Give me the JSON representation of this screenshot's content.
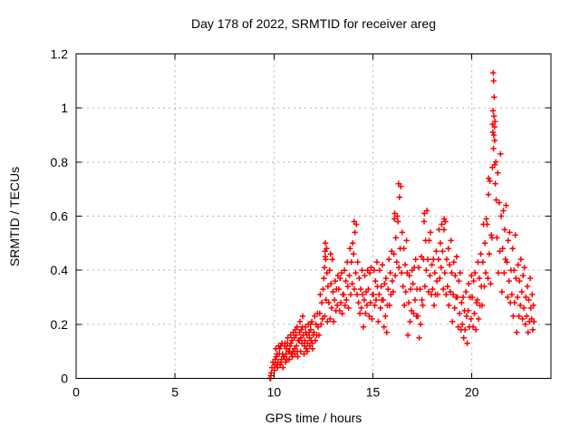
{
  "window": {
    "background": "#ffffff"
  },
  "chart_data": {
    "type": "scatter",
    "title": "Day 178 of 2022, SRMTID for receiver areg",
    "xlabel": "GPS time / hours",
    "ylabel": "SRMTID / TECUs",
    "xlim": [
      0,
      24
    ],
    "ylim": [
      0,
      1.2
    ],
    "xticks": [
      0,
      5,
      10,
      15,
      20
    ],
    "xtick_labels": [
      "0",
      "5",
      "10",
      "15",
      "20"
    ],
    "yticks": [
      0,
      0.2,
      0.4,
      0.6,
      0.8,
      1,
      1.2
    ],
    "ytick_labels": [
      "0",
      "0.2",
      "0.4",
      "0.6",
      "0.8",
      "1",
      "1.2"
    ],
    "grid": true,
    "legend": false,
    "marker": "plus",
    "marker_color": "#ff0000",
    "grid_color": "#b0b0b0",
    "axis_color": "#000000",
    "points": [
      [
        9.8,
        0.0
      ],
      [
        9.83,
        0.0
      ],
      [
        9.84,
        0.01
      ],
      [
        9.86,
        0.02
      ],
      [
        9.9,
        0.04
      ],
      [
        9.95,
        0.06
      ],
      [
        10.02,
        0.03
      ],
      [
        10.06,
        0.07
      ],
      [
        10.09,
        0.11
      ],
      [
        10.13,
        0.05
      ],
      [
        10.16,
        0.09
      ],
      [
        10.2,
        0.06
      ],
      [
        10.23,
        0.12
      ],
      [
        10.04,
        0.05
      ],
      [
        10.11,
        0.08
      ],
      [
        10.18,
        0.04
      ],
      [
        10.29,
        0.11
      ],
      [
        10.36,
        0.06
      ],
      [
        10.43,
        0.09
      ],
      [
        10.27,
        0.09
      ],
      [
        10.31,
        0.05
      ],
      [
        10.34,
        0.12
      ],
      [
        10.38,
        0.07
      ],
      [
        10.41,
        0.13
      ],
      [
        10.45,
        0.04
      ],
      [
        10.48,
        0.08
      ],
      [
        10.52,
        0.08
      ],
      [
        10.56,
        0.13
      ],
      [
        10.59,
        0.06
      ],
      [
        10.63,
        0.11
      ],
      [
        10.66,
        0.07
      ],
      [
        10.7,
        0.15
      ],
      [
        10.73,
        0.1
      ],
      [
        10.54,
        0.12
      ],
      [
        10.61,
        0.09
      ],
      [
        10.68,
        0.13
      ],
      [
        10.79,
        0.1
      ],
      [
        10.86,
        0.13
      ],
      [
        10.93,
        0.08
      ],
      [
        10.77,
        0.07
      ],
      [
        10.81,
        0.12
      ],
      [
        10.84,
        0.16
      ],
      [
        10.88,
        0.09
      ],
      [
        10.91,
        0.14
      ],
      [
        10.95,
        0.1
      ],
      [
        10.98,
        0.17
      ],
      [
        11.02,
        0.15
      ],
      [
        11.06,
        0.09
      ],
      [
        11.09,
        0.18
      ],
      [
        11.13,
        0.12
      ],
      [
        11.16,
        0.19
      ],
      [
        11.2,
        0.08
      ],
      [
        11.23,
        0.14
      ],
      [
        11.04,
        0.11
      ],
      [
        11.11,
        0.16
      ],
      [
        11.18,
        0.1
      ],
      [
        11.29,
        0.17
      ],
      [
        11.36,
        0.15
      ],
      [
        11.43,
        0.19
      ],
      [
        11.27,
        0.14
      ],
      [
        11.31,
        0.21
      ],
      [
        11.34,
        0.1
      ],
      [
        11.38,
        0.18
      ],
      [
        11.41,
        0.13
      ],
      [
        11.45,
        0.23
      ],
      [
        11.48,
        0.16
      ],
      [
        11.52,
        0.09
      ],
      [
        11.56,
        0.14
      ],
      [
        11.59,
        0.19
      ],
      [
        11.63,
        0.11
      ],
      [
        11.66,
        0.16
      ],
      [
        11.7,
        0.13
      ],
      [
        11.73,
        0.2
      ],
      [
        11.54,
        0.12
      ],
      [
        11.61,
        0.17
      ],
      [
        11.68,
        0.1
      ],
      [
        11.79,
        0.15
      ],
      [
        11.86,
        0.18
      ],
      [
        11.93,
        0.13
      ],
      [
        11.77,
        0.17
      ],
      [
        11.81,
        0.12
      ],
      [
        11.84,
        0.2
      ],
      [
        11.88,
        0.14
      ],
      [
        11.91,
        0.21
      ],
      [
        11.95,
        0.11
      ],
      [
        11.98,
        0.16
      ],
      [
        12.02,
        0.17
      ],
      [
        12.06,
        0.23
      ],
      [
        12.09,
        0.14
      ],
      [
        12.13,
        0.2
      ],
      [
        12.16,
        0.16
      ],
      [
        12.2,
        0.24
      ],
      [
        12.23,
        0.19
      ],
      [
        12.27,
        0.16
      ],
      [
        12.31,
        0.24
      ],
      [
        12.34,
        0.31
      ],
      [
        12.38,
        0.2
      ],
      [
        12.41,
        0.28
      ],
      [
        12.45,
        0.22
      ],
      [
        12.48,
        0.33
      ],
      [
        12.52,
        0.37
      ],
      [
        12.56,
        0.23
      ],
      [
        12.59,
        0.45
      ],
      [
        12.6,
        0.5
      ],
      [
        12.63,
        0.29
      ],
      [
        12.66,
        0.48
      ],
      [
        12.7,
        0.21
      ],
      [
        12.73,
        0.34
      ],
      [
        12.55,
        0.41
      ],
      [
        12.58,
        0.47
      ],
      [
        12.62,
        0.44
      ],
      [
        12.68,
        0.39
      ],
      [
        12.77,
        0.28
      ],
      [
        12.81,
        0.4
      ],
      [
        12.84,
        0.22
      ],
      [
        12.86,
        0.46
      ],
      [
        12.88,
        0.35
      ],
      [
        12.91,
        0.26
      ],
      [
        12.95,
        0.44
      ],
      [
        12.98,
        0.32
      ],
      [
        13.02,
        0.21
      ],
      [
        13.06,
        0.29
      ],
      [
        13.09,
        0.36
      ],
      [
        13.13,
        0.25
      ],
      [
        13.16,
        0.33
      ],
      [
        13.2,
        0.27
      ],
      [
        13.23,
        0.38
      ],
      [
        13.27,
        0.33
      ],
      [
        13.31,
        0.25
      ],
      [
        13.34,
        0.37
      ],
      [
        13.38,
        0.28
      ],
      [
        13.41,
        0.39
      ],
      [
        13.45,
        0.24
      ],
      [
        13.48,
        0.31
      ],
      [
        13.52,
        0.31
      ],
      [
        13.56,
        0.4
      ],
      [
        13.59,
        0.27
      ],
      [
        13.63,
        0.36
      ],
      [
        13.66,
        0.29
      ],
      [
        13.7,
        0.43
      ],
      [
        13.73,
        0.34
      ],
      [
        13.77,
        0.26
      ],
      [
        13.81,
        0.38
      ],
      [
        13.84,
        0.48
      ],
      [
        13.88,
        0.31
      ],
      [
        13.91,
        0.43
      ],
      [
        13.95,
        0.35
      ],
      [
        13.98,
        0.5
      ],
      [
        14.02,
        0.46
      ],
      [
        14.05,
        0.58
      ],
      [
        14.06,
        0.33
      ],
      [
        14.09,
        0.54
      ],
      [
        14.13,
        0.39
      ],
      [
        14.16,
        0.57
      ],
      [
        14.2,
        0.31
      ],
      [
        14.23,
        0.43
      ],
      [
        14.27,
        0.28
      ],
      [
        14.31,
        0.37
      ],
      [
        14.34,
        0.24
      ],
      [
        14.38,
        0.33
      ],
      [
        14.41,
        0.26
      ],
      [
        14.45,
        0.4
      ],
      [
        14.48,
        0.31
      ],
      [
        14.52,
        0.19
      ],
      [
        14.56,
        0.29
      ],
      [
        14.59,
        0.38
      ],
      [
        14.63,
        0.24
      ],
      [
        14.66,
        0.32
      ],
      [
        14.7,
        0.27
      ],
      [
        14.73,
        0.4
      ],
      [
        14.77,
        0.33
      ],
      [
        14.81,
        0.23
      ],
      [
        14.84,
        0.39
      ],
      [
        14.88,
        0.28
      ],
      [
        14.91,
        0.41
      ],
      [
        14.95,
        0.22
      ],
      [
        14.98,
        0.31
      ],
      [
        15.02,
        0.31
      ],
      [
        15.06,
        0.4
      ],
      [
        15.09,
        0.27
      ],
      [
        15.13,
        0.36
      ],
      [
        15.16,
        0.29
      ],
      [
        15.2,
        0.43
      ],
      [
        15.23,
        0.34
      ],
      [
        15.27,
        0.21
      ],
      [
        15.31,
        0.31
      ],
      [
        15.34,
        0.4
      ],
      [
        15.38,
        0.26
      ],
      [
        15.41,
        0.34
      ],
      [
        15.45,
        0.29
      ],
      [
        15.48,
        0.42
      ],
      [
        15.52,
        0.29
      ],
      [
        15.56,
        0.19
      ],
      [
        15.59,
        0.35
      ],
      [
        15.63,
        0.23
      ],
      [
        15.66,
        0.37
      ],
      [
        15.7,
        0.17
      ],
      [
        15.73,
        0.27
      ],
      [
        15.77,
        0.33
      ],
      [
        15.81,
        0.44
      ],
      [
        15.84,
        0.27
      ],
      [
        15.88,
        0.39
      ],
      [
        15.91,
        0.31
      ],
      [
        15.95,
        0.47
      ],
      [
        15.98,
        0.36
      ],
      [
        16.02,
        0.32
      ],
      [
        16.06,
        0.46
      ],
      [
        16.09,
        0.59
      ],
      [
        16.1,
        0.61
      ],
      [
        16.13,
        0.38
      ],
      [
        16.16,
        0.52
      ],
      [
        16.2,
        0.43
      ],
      [
        16.23,
        0.6
      ],
      [
        16.27,
        0.58
      ],
      [
        16.3,
        0.72
      ],
      [
        16.31,
        0.41
      ],
      [
        16.34,
        0.67
      ],
      [
        16.38,
        0.48
      ],
      [
        16.41,
        0.71
      ],
      [
        16.45,
        0.39
      ],
      [
        16.48,
        0.54
      ],
      [
        16.52,
        0.34
      ],
      [
        16.56,
        0.48
      ],
      [
        16.59,
        0.27
      ],
      [
        16.63,
        0.42
      ],
      [
        16.66,
        0.32
      ],
      [
        16.7,
        0.51
      ],
      [
        16.73,
        0.39
      ],
      [
        16.77,
        0.16
      ],
      [
        16.81,
        0.28
      ],
      [
        16.84,
        0.38
      ],
      [
        16.88,
        0.21
      ],
      [
        16.91,
        0.33
      ],
      [
        16.95,
        0.25
      ],
      [
        16.98,
        0.4
      ],
      [
        17.02,
        0.35
      ],
      [
        17.06,
        0.24
      ],
      [
        17.09,
        0.41
      ],
      [
        17.13,
        0.29
      ],
      [
        17.16,
        0.44
      ],
      [
        17.2,
        0.23
      ],
      [
        17.23,
        0.33
      ],
      [
        17.27,
        0.23
      ],
      [
        17.31,
        0.41
      ],
      [
        17.34,
        0.15
      ],
      [
        17.38,
        0.33
      ],
      [
        17.41,
        0.2
      ],
      [
        17.45,
        0.45
      ],
      [
        17.48,
        0.29
      ],
      [
        17.52,
        0.27
      ],
      [
        17.56,
        0.44
      ],
      [
        17.59,
        0.58
      ],
      [
        17.6,
        0.61
      ],
      [
        17.63,
        0.34
      ],
      [
        17.66,
        0.51
      ],
      [
        17.7,
        0.4
      ],
      [
        17.73,
        0.62
      ],
      [
        17.77,
        0.44
      ],
      [
        17.81,
        0.32
      ],
      [
        17.84,
        0.51
      ],
      [
        17.88,
        0.38
      ],
      [
        17.91,
        0.54
      ],
      [
        17.95,
        0.31
      ],
      [
        17.98,
        0.42
      ],
      [
        18.02,
        0.33
      ],
      [
        18.06,
        0.44
      ],
      [
        18.09,
        0.27
      ],
      [
        18.13,
        0.39
      ],
      [
        18.16,
        0.31
      ],
      [
        18.2,
        0.47
      ],
      [
        18.23,
        0.36
      ],
      [
        18.27,
        0.31
      ],
      [
        18.31,
        0.44
      ],
      [
        18.34,
        0.55
      ],
      [
        18.38,
        0.37
      ],
      [
        18.41,
        0.5
      ],
      [
        18.45,
        0.41
      ],
      [
        18.48,
        0.57
      ],
      [
        18.52,
        0.47
      ],
      [
        18.56,
        0.33
      ],
      [
        18.59,
        0.55
      ],
      [
        18.6,
        0.59
      ],
      [
        18.63,
        0.39
      ],
      [
        18.66,
        0.58
      ],
      [
        18.7,
        0.31
      ],
      [
        18.73,
        0.44
      ],
      [
        18.77,
        0.34
      ],
      [
        18.81,
        0.48
      ],
      [
        18.84,
        0.27
      ],
      [
        18.88,
        0.42
      ],
      [
        18.91,
        0.32
      ],
      [
        18.95,
        0.51
      ],
      [
        18.98,
        0.39
      ],
      [
        19.02,
        0.21
      ],
      [
        19.06,
        0.31
      ],
      [
        19.09,
        0.43
      ],
      [
        19.13,
        0.26
      ],
      [
        19.16,
        0.38
      ],
      [
        19.2,
        0.3
      ],
      [
        19.23,
        0.45
      ],
      [
        19.27,
        0.3
      ],
      [
        19.31,
        0.19
      ],
      [
        19.34,
        0.36
      ],
      [
        19.38,
        0.24
      ],
      [
        19.41,
        0.39
      ],
      [
        19.45,
        0.18
      ],
      [
        19.48,
        0.28
      ],
      [
        19.52,
        0.2
      ],
      [
        19.56,
        0.3
      ],
      [
        19.59,
        0.15
      ],
      [
        19.63,
        0.25
      ],
      [
        19.66,
        0.18
      ],
      [
        19.7,
        0.32
      ],
      [
        19.73,
        0.23
      ],
      [
        19.77,
        0.13
      ],
      [
        19.81,
        0.25
      ],
      [
        19.84,
        0.35
      ],
      [
        19.88,
        0.19
      ],
      [
        19.91,
        0.3
      ],
      [
        19.95,
        0.22
      ],
      [
        19.98,
        0.38
      ],
      [
        20.02,
        0.3
      ],
      [
        20.06,
        0.19
      ],
      [
        20.09,
        0.36
      ],
      [
        20.13,
        0.24
      ],
      [
        20.16,
        0.39
      ],
      [
        20.2,
        0.18
      ],
      [
        20.23,
        0.28
      ],
      [
        20.27,
        0.29
      ],
      [
        20.31,
        0.43
      ],
      [
        20.34,
        0.22
      ],
      [
        20.38,
        0.37
      ],
      [
        20.41,
        0.27
      ],
      [
        20.45,
        0.46
      ],
      [
        20.48,
        0.34
      ],
      [
        20.52,
        0.27
      ],
      [
        20.56,
        0.43
      ],
      [
        20.59,
        0.57
      ],
      [
        20.63,
        0.34
      ],
      [
        20.66,
        0.5
      ],
      [
        20.7,
        0.39
      ],
      [
        20.73,
        0.59
      ],
      [
        20.77,
        0.57
      ],
      [
        20.81,
        0.37
      ],
      [
        20.84,
        0.68
      ],
      [
        20.85,
        0.74
      ],
      [
        20.88,
        0.46
      ],
      [
        20.91,
        0.73
      ],
      [
        20.95,
        0.35
      ],
      [
        20.98,
        0.53
      ],
      [
        21.02,
        0.52
      ],
      [
        21.04,
        0.78
      ],
      [
        21.05,
        0.94
      ],
      [
        21.06,
        0.91
      ],
      [
        21.07,
        0.99
      ],
      [
        21.08,
        1.13
      ],
      [
        21.09,
        0.85
      ],
      [
        21.1,
        1.1
      ],
      [
        21.11,
        0.9
      ],
      [
        21.12,
        0.97
      ],
      [
        21.13,
        1.04
      ],
      [
        21.14,
        0.93
      ],
      [
        21.15,
        0.88
      ],
      [
        21.16,
        0.79
      ],
      [
        21.17,
        0.95
      ],
      [
        21.19,
        0.72
      ],
      [
        21.21,
        0.8
      ],
      [
        21.23,
        0.66
      ],
      [
        21.27,
        0.52
      ],
      [
        21.31,
        0.76
      ],
      [
        21.34,
        0.39
      ],
      [
        21.38,
        0.65
      ],
      [
        21.41,
        0.47
      ],
      [
        21.45,
        0.83
      ],
      [
        21.48,
        0.6
      ],
      [
        21.52,
        0.32
      ],
      [
        21.56,
        0.48
      ],
      [
        21.59,
        0.62
      ],
      [
        21.63,
        0.39
      ],
      [
        21.66,
        0.55
      ],
      [
        21.7,
        0.44
      ],
      [
        21.73,
        0.64
      ],
      [
        21.77,
        0.43
      ],
      [
        21.81,
        0.3
      ],
      [
        21.84,
        0.51
      ],
      [
        21.88,
        0.36
      ],
      [
        21.91,
        0.54
      ],
      [
        21.95,
        0.28
      ],
      [
        21.98,
        0.4
      ],
      [
        22.02,
        0.31
      ],
      [
        22.06,
        0.48
      ],
      [
        22.09,
        0.23
      ],
      [
        22.13,
        0.4
      ],
      [
        22.16,
        0.28
      ],
      [
        22.2,
        0.53
      ],
      [
        22.23,
        0.37
      ],
      [
        22.27,
        0.17
      ],
      [
        22.31,
        0.3
      ],
      [
        22.34,
        0.42
      ],
      [
        22.38,
        0.23
      ],
      [
        22.41,
        0.36
      ],
      [
        22.45,
        0.27
      ],
      [
        22.48,
        0.44
      ],
      [
        22.52,
        0.32
      ],
      [
        22.56,
        0.22
      ],
      [
        22.59,
        0.38
      ],
      [
        22.63,
        0.26
      ],
      [
        22.66,
        0.41
      ],
      [
        22.7,
        0.2
      ],
      [
        22.73,
        0.3
      ],
      [
        22.77,
        0.23
      ],
      [
        22.81,
        0.34
      ],
      [
        22.84,
        0.17
      ],
      [
        22.88,
        0.29
      ],
      [
        22.91,
        0.21
      ],
      [
        22.95,
        0.37
      ],
      [
        22.98,
        0.26
      ],
      [
        23.02,
        0.22
      ],
      [
        23.05,
        0.31
      ],
      [
        23.08,
        0.18
      ],
      [
        23.11,
        0.27
      ],
      [
        23.14,
        0.21
      ]
    ]
  }
}
